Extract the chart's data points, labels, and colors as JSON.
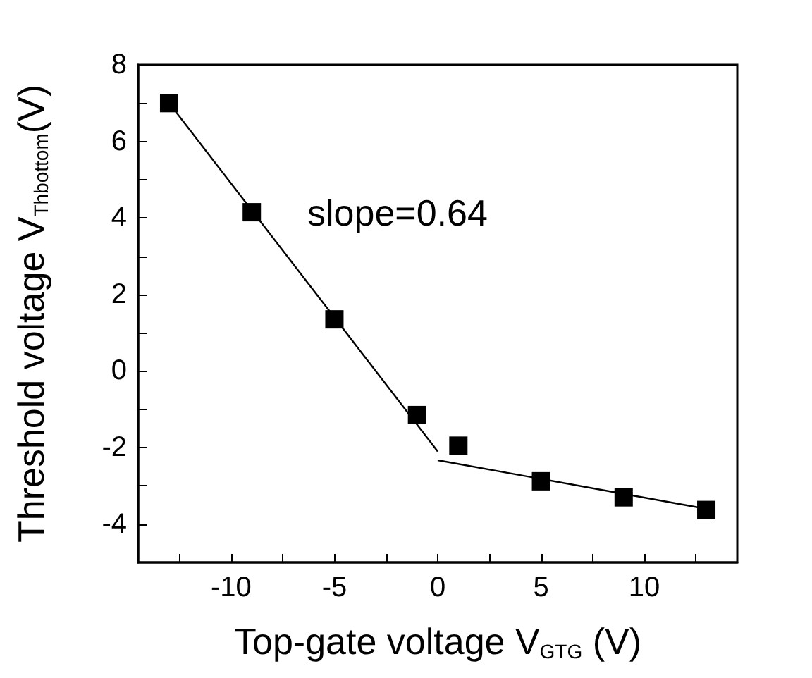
{
  "chart_data": {
    "type": "scatter",
    "xlabel": "Top-gate voltage V$_{GTG}$ (V)",
    "ylabel": "Threshold voltage V$_{Thbottom}$(V)",
    "annotations": [
      "slope=0.64"
    ],
    "xlim": [
      -14.5,
      14.5
    ],
    "xticks": [
      {
        "value": -12.5,
        "label": null
      },
      -10,
      {
        "value": -7.5,
        "label": null
      },
      -5,
      {
        "value": -2.5,
        "label": null
      },
      0,
      {
        "value": 2.5,
        "label": null
      },
      5,
      {
        "value": 7.5,
        "label": null
      },
      10,
      {
        "value": 12.5,
        "label": null
      }
    ],
    "ylim": [
      -5,
      8
    ],
    "yticks": [
      -4,
      {
        "value": -3,
        "label": null
      },
      -2,
      {
        "value": -1,
        "label": null
      },
      0,
      {
        "value": 1,
        "label": null
      },
      2,
      {
        "value": 3,
        "label": null
      },
      4,
      {
        "value": 5,
        "label": null
      },
      6,
      {
        "value": 7,
        "label": null
      },
      8
    ],
    "grid": false,
    "series": [
      {
        "marker": "square",
        "color": "#000000",
        "x": [
          -13,
          -9,
          -5,
          -1,
          1,
          5,
          9,
          13
        ],
        "values": [
          7.0,
          4.15,
          1.35,
          -1.15,
          -1.95,
          -2.88,
          -3.3,
          -3.63
        ]
      },
      {
        "type": "line",
        "marker": "none",
        "color": "#000000",
        "x": [
          -13,
          0
        ],
        "values": [
          7.0,
          -2.1
        ]
      },
      {
        "type": "line",
        "marker": "none",
        "color": "#000000",
        "x": [
          0,
          13
        ],
        "values": [
          -2.33,
          -3.6
        ]
      }
    ]
  }
}
